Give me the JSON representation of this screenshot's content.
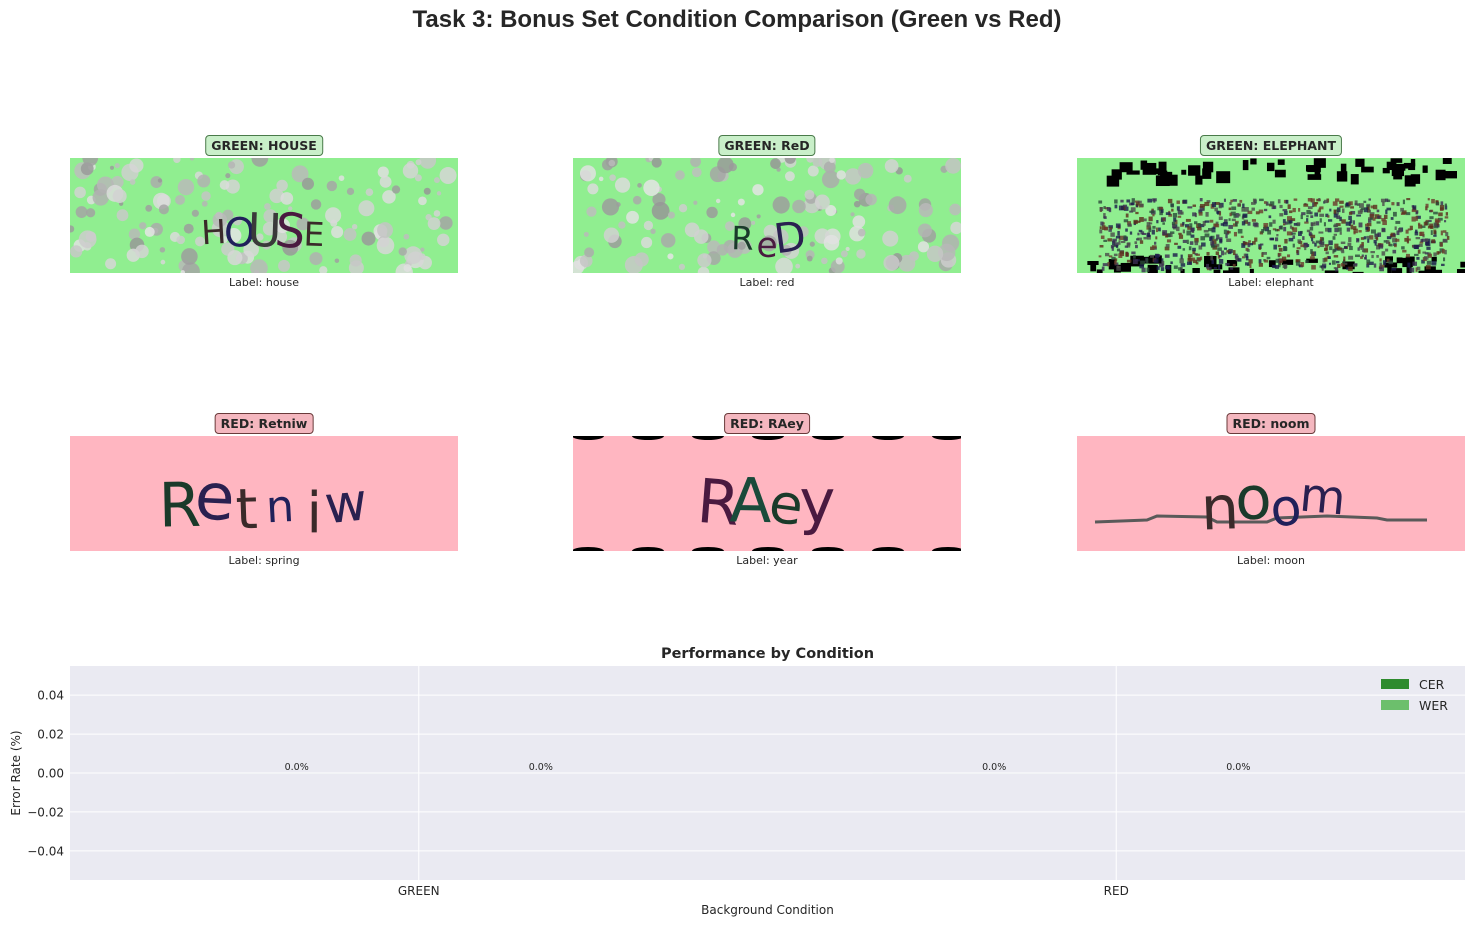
{
  "title": "Task 3: Bonus Set Condition Comparison (Green vs Red)",
  "samples": [
    {
      "badge": "GREEN: HOUSE",
      "caption": "Label: house",
      "word": "HOUSE",
      "bg": "#90ee90",
      "condition": "green",
      "style": "dots"
    },
    {
      "badge": "GREEN: ReD",
      "caption": "Label: red",
      "word": "ReD",
      "bg": "#90ee90",
      "condition": "green",
      "style": "dots"
    },
    {
      "badge": "GREEN: ELEPHANT",
      "caption": "Label: elephant",
      "word": "ELEPHANT",
      "bg": "#90ee90",
      "condition": "green",
      "style": "noise"
    },
    {
      "badge": "RED: Retniw",
      "caption": "Label: spring",
      "word": "Retniw",
      "bg": "#ffb6c1",
      "condition": "red",
      "style": "plain"
    },
    {
      "badge": "RED: RAey",
      "caption": "Label: year",
      "word": "RAey",
      "bg": "#ffb6c1",
      "condition": "red",
      "style": "plain"
    },
    {
      "badge": "RED: noom",
      "caption": "Label: moon",
      "word": "noom",
      "bg": "#ffb6c1",
      "condition": "red",
      "style": "line"
    }
  ],
  "chart_data": {
    "type": "bar",
    "title": "Performance by Condition",
    "xlabel": "Background Condition",
    "ylabel": "Error Rate (%)",
    "categories": [
      "GREEN",
      "RED"
    ],
    "series": [
      {
        "name": "CER",
        "values": [
          0.0,
          0.0
        ],
        "color": "#2e8b2e"
      },
      {
        "name": "WER",
        "values": [
          0.0,
          0.0
        ],
        "color": "#6cbf6c"
      }
    ],
    "bar_labels": [
      "0.0%",
      "0.0%",
      "0.0%",
      "0.0%"
    ],
    "ylim": [
      -0.055,
      0.055
    ],
    "yticks": [
      -0.04,
      -0.02,
      0.0,
      0.02,
      0.04
    ],
    "ytick_labels": [
      "−0.04",
      "−0.02",
      "0.00",
      "0.02",
      "0.04"
    ],
    "grid": true,
    "legend_position": "top-right",
    "background": "#eaeaf2"
  }
}
